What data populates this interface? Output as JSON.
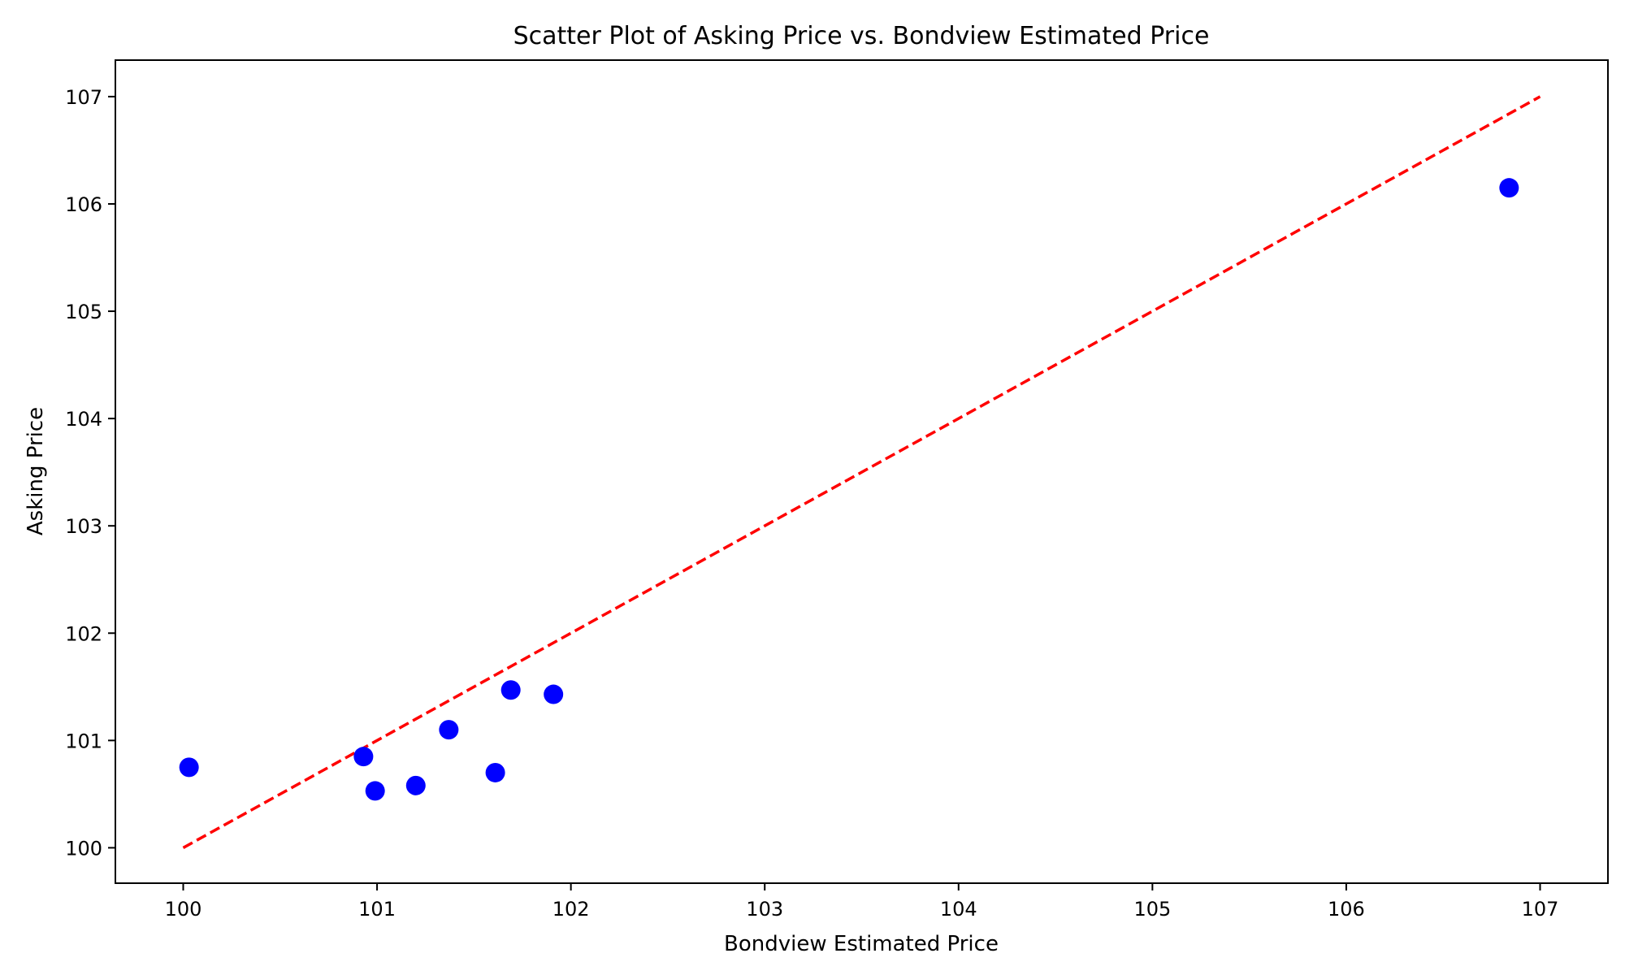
{
  "chart_data": {
    "type": "scatter",
    "title": "Scatter Plot of Asking Price vs. Bondview Estimated Price",
    "xlabel": "Bondview Estimated Price",
    "ylabel": "Asking Price",
    "xlim": [
      99.65,
      107.35
    ],
    "ylim": [
      99.67,
      107.34
    ],
    "xticks": [
      "100",
      "101",
      "102",
      "103",
      "104",
      "105",
      "106",
      "107"
    ],
    "yticks": [
      "100",
      "101",
      "102",
      "103",
      "104",
      "105",
      "106",
      "107"
    ],
    "grid": false,
    "series": [
      {
        "name": "bonds",
        "color": "#0000ff",
        "points": [
          {
            "x": 100.03,
            "y": 100.75
          },
          {
            "x": 100.93,
            "y": 100.85
          },
          {
            "x": 100.99,
            "y": 100.53
          },
          {
            "x": 101.2,
            "y": 100.58
          },
          {
            "x": 101.37,
            "y": 101.1
          },
          {
            "x": 101.61,
            "y": 100.7
          },
          {
            "x": 101.69,
            "y": 101.47
          },
          {
            "x": 101.91,
            "y": 101.43
          },
          {
            "x": 106.84,
            "y": 106.15
          }
        ]
      }
    ],
    "reference_line": {
      "color": "#ff0000",
      "style": "dashed",
      "from": [
        100,
        100
      ],
      "to": [
        107,
        107
      ]
    }
  }
}
